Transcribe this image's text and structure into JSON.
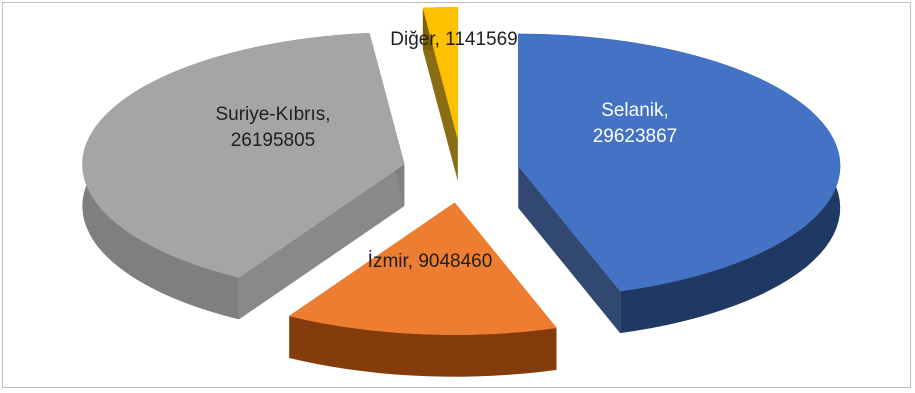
{
  "chart_data": {
    "type": "pie",
    "title": "",
    "three_d": true,
    "exploded": true,
    "legend": "none",
    "slices": [
      {
        "name": "Selanik",
        "value": 29623867,
        "color": "#4472c4",
        "side_color": "#203864",
        "label_line1": "Selanik,",
        "label_line2": "29623867"
      },
      {
        "name": "İzmir",
        "value": 9048460,
        "color": "#ed7d31",
        "side_color": "#843c0c",
        "label_line1": "İzmir, 9048460",
        "label_line2": ""
      },
      {
        "name": "Suriye-Kıbrıs",
        "value": 26195805,
        "color": "#a5a5a5",
        "side_color": "#7f7f7f",
        "label_line1": "Suriye-Kıbrıs,",
        "label_line2": "26195805"
      },
      {
        "name": "Diğer",
        "value": 1141569,
        "color": "#ffc000",
        "side_color": "#7f6000",
        "label_line1": "Diğer, 1141569",
        "label_line2": ""
      }
    ]
  }
}
